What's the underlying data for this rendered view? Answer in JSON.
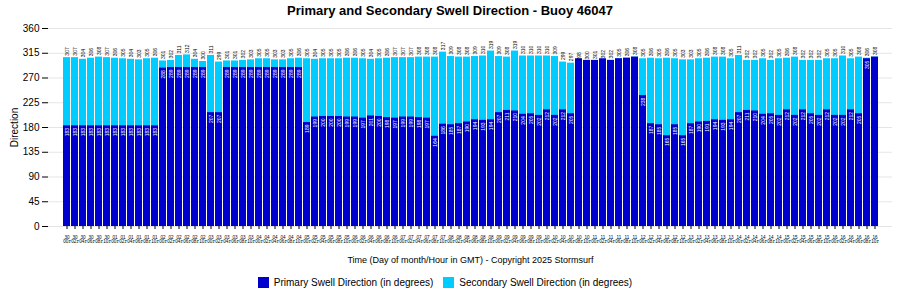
{
  "chart_data": {
    "type": "bar",
    "title": "Primary and Secondary Swell Direction - Buoy 46047",
    "xlabel": "Time (Day of month/Hour in GMT) - Copyright 2025 Stormsurf",
    "ylabel": "Direction",
    "categories": [
      "30\n00z",
      "30\n02z",
      "30\n04z",
      "30\n06z",
      "30\n08z",
      "30\n10z",
      "01\n00z",
      "01\n02z",
      "01\n04z",
      "01\n06z",
      "01\n08z",
      "01\n10z",
      "02\n00z",
      "02\n02z",
      "02\n04z",
      "02\n06z",
      "02\n08z",
      "02\n10z",
      "03\n00z",
      "03\n02z",
      "03\n04z",
      "03\n06z",
      "03\n08z",
      "03\n10z",
      "04\n00z",
      "04\n02z",
      "04\n04z",
      "04\n06z",
      "04\n08z",
      "04\n10z",
      "05\n00z",
      "05\n02z",
      "05\n04z",
      "05\n06z",
      "05\n08z",
      "05\n10z",
      "06\n00z",
      "06\n02z",
      "06\n04z",
      "06\n06z",
      "06\n08z",
      "06\n10z",
      "07\n00z",
      "07\n02z",
      "07\n04z",
      "07\n06z",
      "07\n08z",
      "07\n10z",
      "08\n00z",
      "08\n02z",
      "08\n04z",
      "08\n06z",
      "08\n08z",
      "08\n10z",
      "09\n00z",
      "09\n02z",
      "09\n04z",
      "09\n06z",
      "09\n08z",
      "09\n10z",
      "10\n00z",
      "10\n02z",
      "10\n04z",
      "10\n06z",
      "10\n08z",
      "10\n10z",
      "11\n00z",
      "11\n02z",
      "11\n04z",
      "11\n06z",
      "11\n08z",
      "11\n10z",
      "12\n00z",
      "12\n02z",
      "12\n04z",
      "12\n06z",
      "12\n08z",
      "12\n10z",
      "13\n00z",
      "13\n02z",
      "13\n04z",
      "13\n06z",
      "13\n08z",
      "13\n10z",
      "14\n00z",
      "14\n02z",
      "14\n04z",
      "14\n06z",
      "14\n08z",
      "14\n10z",
      "15\n00z",
      "15\n02z",
      "15\n04z",
      "15\n06z",
      "15\n08z",
      "15\n10z",
      "16\n00z",
      "16\n02z",
      "16\n04z",
      "16\n06z",
      "16\n08z",
      "16\n10z"
    ],
    "series": [
      {
        "name": "Primary Swell Direction (in degrees)",
        "color": "#0000CC",
        "values": [
          183,
          183,
          183,
          183,
          183,
          183,
          183,
          183,
          183,
          183,
          183,
          183,
          288,
          289,
          289,
          289,
          289,
          289,
          207,
          207,
          289,
          289,
          289,
          289,
          289,
          289,
          289,
          289,
          289,
          289,
          189,
          199,
          200,
          200,
          200,
          199,
          199,
          197,
          201,
          200,
          198,
          197,
          199,
          199,
          198,
          197,
          164,
          186,
          185,
          187,
          190,
          194,
          193,
          194,
          207,
          211,
          210,
          204,
          205,
          202,
          212,
          202,
          212,
          205,
          305,
          302,
          302,
          305,
          302,
          305,
          306,
          308,
          238,
          187,
          185,
          165,
          185,
          165,
          187,
          190,
          191,
          194,
          193,
          194,
          207,
          211,
          210,
          204,
          205,
          202,
          212,
          202,
          212,
          205,
          202,
          212,
          202,
          202,
          212,
          205,
          305,
          308
        ]
      },
      {
        "name": "Secondary Swell Direction (in degrees)",
        "color": "#00CCFF",
        "values": [
          307,
          307,
          304,
          306,
          308,
          307,
          306,
          305,
          304,
          303,
          305,
          306,
          301,
          302,
          311,
          312,
          304,
          300,
          311,
          299,
          301,
          301,
          302,
          303,
          305,
          305,
          303,
          303,
          305,
          306,
          305,
          304,
          305,
          305,
          305,
          306,
          306,
          305,
          304,
          305,
          306,
          307,
          307,
          307,
          308,
          308,
          308,
          317,
          309,
          308,
          308,
          309,
          310,
          319,
          309,
          308,
          319,
          310,
          310,
          310,
          310,
          309,
          299,
          297,
          298,
          300,
          301,
          302,
          302,
          305,
          306,
          308,
          305,
          306,
          305,
          306,
          305,
          303,
          303,
          305,
          306,
          308,
          308,
          305,
          311,
          302,
          302,
          305,
          302,
          305,
          306,
          308,
          302,
          302,
          302,
          305,
          305,
          310,
          305,
          308,
          306,
          308
        ]
      }
    ],
    "ylim": [
      0,
      360
    ],
    "yticks": [
      0,
      45,
      90,
      135,
      180,
      225,
      270,
      315,
      360
    ],
    "grid": true,
    "legend": "bottom",
    "data_labels": true
  }
}
